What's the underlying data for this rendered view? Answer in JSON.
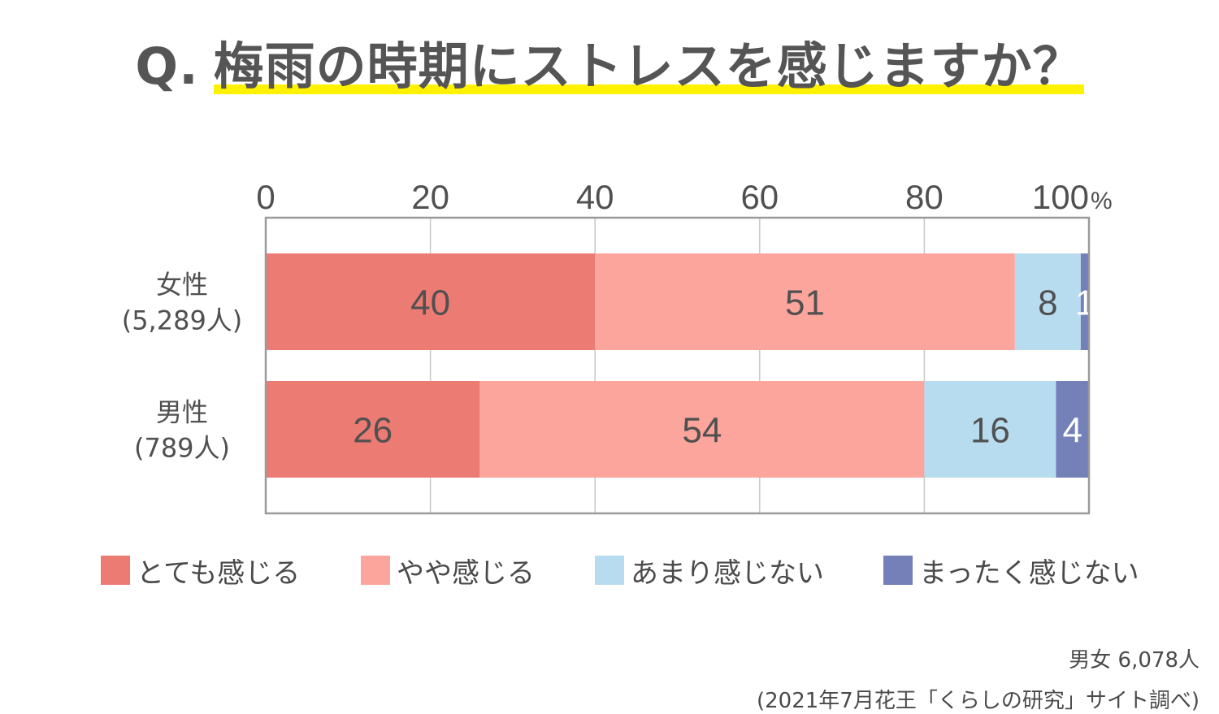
{
  "title": {
    "q": "Q.",
    "text": "梅雨の時期にストレスを感じますか？"
  },
  "chart_data": {
    "type": "bar",
    "orientation": "horizontal",
    "stacked": true,
    "xlim": [
      0,
      100
    ],
    "ticks": [
      "0",
      "20",
      "40",
      "60",
      "80",
      "100"
    ],
    "unit": "%",
    "grid": true,
    "categories": [
      {
        "line1": "女性",
        "line2": "(5,289人)"
      },
      {
        "line1": "男性",
        "line2": "(789人)"
      }
    ],
    "series": [
      {
        "name": "とても感じる",
        "color": "#ec7b74",
        "label_color": "#505050",
        "values": [
          40,
          26
        ]
      },
      {
        "name": "やや感じる",
        "color": "#fba59c",
        "label_color": "#505050",
        "values": [
          51,
          54
        ]
      },
      {
        "name": "あまり感じない",
        "color": "#b8dcef",
        "label_color": "#505050",
        "values": [
          8,
          16
        ]
      },
      {
        "name": "まったく感じない",
        "color": "#7480b8",
        "label_color": "#ffffff",
        "values": [
          1,
          4
        ]
      }
    ],
    "legend_position": "bottom"
  },
  "footer": {
    "total": "男女 6,078人",
    "source": "(2021年7月花王「くらしの研究」サイト調べ)"
  }
}
